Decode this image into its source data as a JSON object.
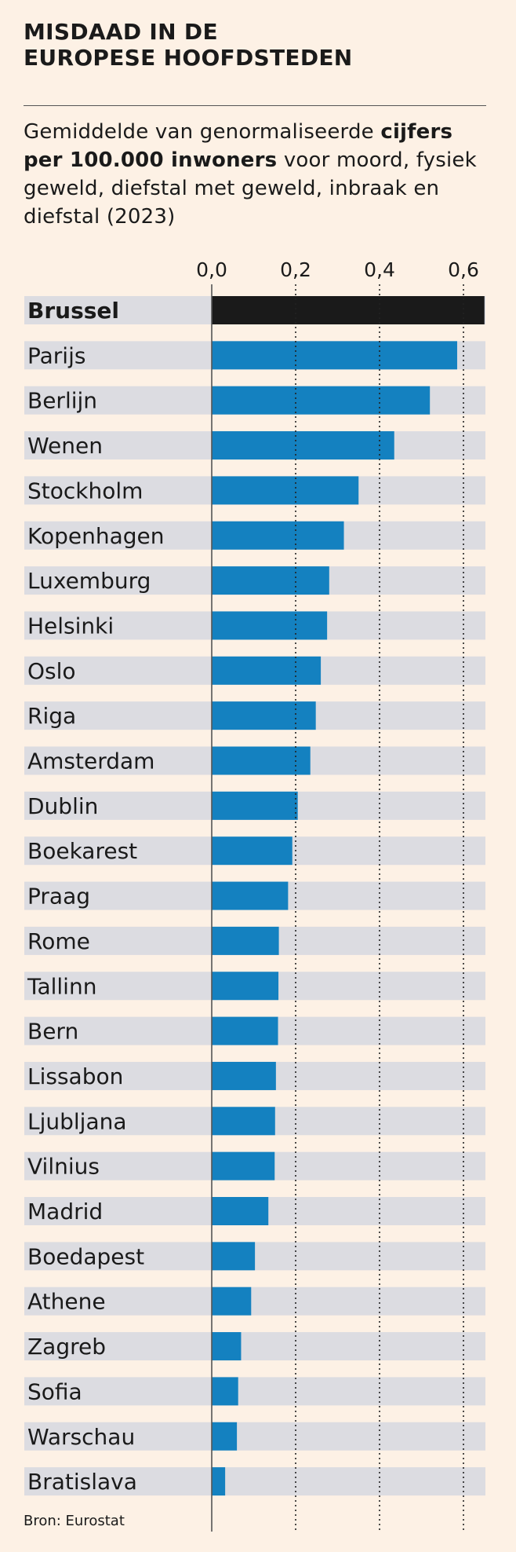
{
  "header": {
    "title_line1": "MISDAAD IN DE",
    "title_line2": "EUROPESE HOOFDSTEDEN",
    "subtitle_pre": "Gemiddelde van genormaliseerde",
    "subtitle_bold": "cijfers per 100.000 inwoners",
    "subtitle_post": "voor moord, fysiek geweld, diefstal met geweld, inbraak en diefstal (2023)"
  },
  "footer": {
    "source": "Bron: Eurostat"
  },
  "chart_data": {
    "type": "bar",
    "orientation": "horizontal",
    "title": "MISDAAD IN DE EUROPESE HOOFDSTEDEN",
    "subtitle": "Gemiddelde van genormaliseerde cijfers per 100.000 inwoners voor moord, fysiek geweld, diefstal met geweld, inbraak en diefstal (2023)",
    "categories": [
      "Brussel",
      "Parijs",
      "Berlijn",
      "Wenen",
      "Stockholm",
      "Kopenhagen",
      "Luxemburg",
      "Helsinki",
      "Oslo",
      "Riga",
      "Amsterdam",
      "Dublin",
      "Boekarest",
      "Praag",
      "Rome",
      "Tallinn",
      "Bern",
      "Lissabon",
      "Ljubljana",
      "Vilnius",
      "Madrid",
      "Boedapest",
      "Athene",
      "Zagreb",
      "Sofia",
      "Warschau",
      "Bratislava"
    ],
    "values": [
      0.65,
      0.585,
      0.52,
      0.435,
      0.35,
      0.315,
      0.28,
      0.275,
      0.26,
      0.248,
      0.235,
      0.205,
      0.192,
      0.182,
      0.16,
      0.159,
      0.158,
      0.153,
      0.151,
      0.15,
      0.135,
      0.103,
      0.094,
      0.07,
      0.063,
      0.06,
      0.032
    ],
    "highlight": "Brussel",
    "xticks": [
      "0,0",
      "0,2",
      "0,4",
      "0,6"
    ],
    "xtick_values": [
      0,
      0.2,
      0.4,
      0.6
    ],
    "xlim": [
      0,
      0.65
    ],
    "grid": "dotted vertical",
    "colors": {
      "bar": "#1481c0",
      "highlight": "#1a1a1a",
      "track": "#dcdce1",
      "axis": "#555555"
    }
  }
}
